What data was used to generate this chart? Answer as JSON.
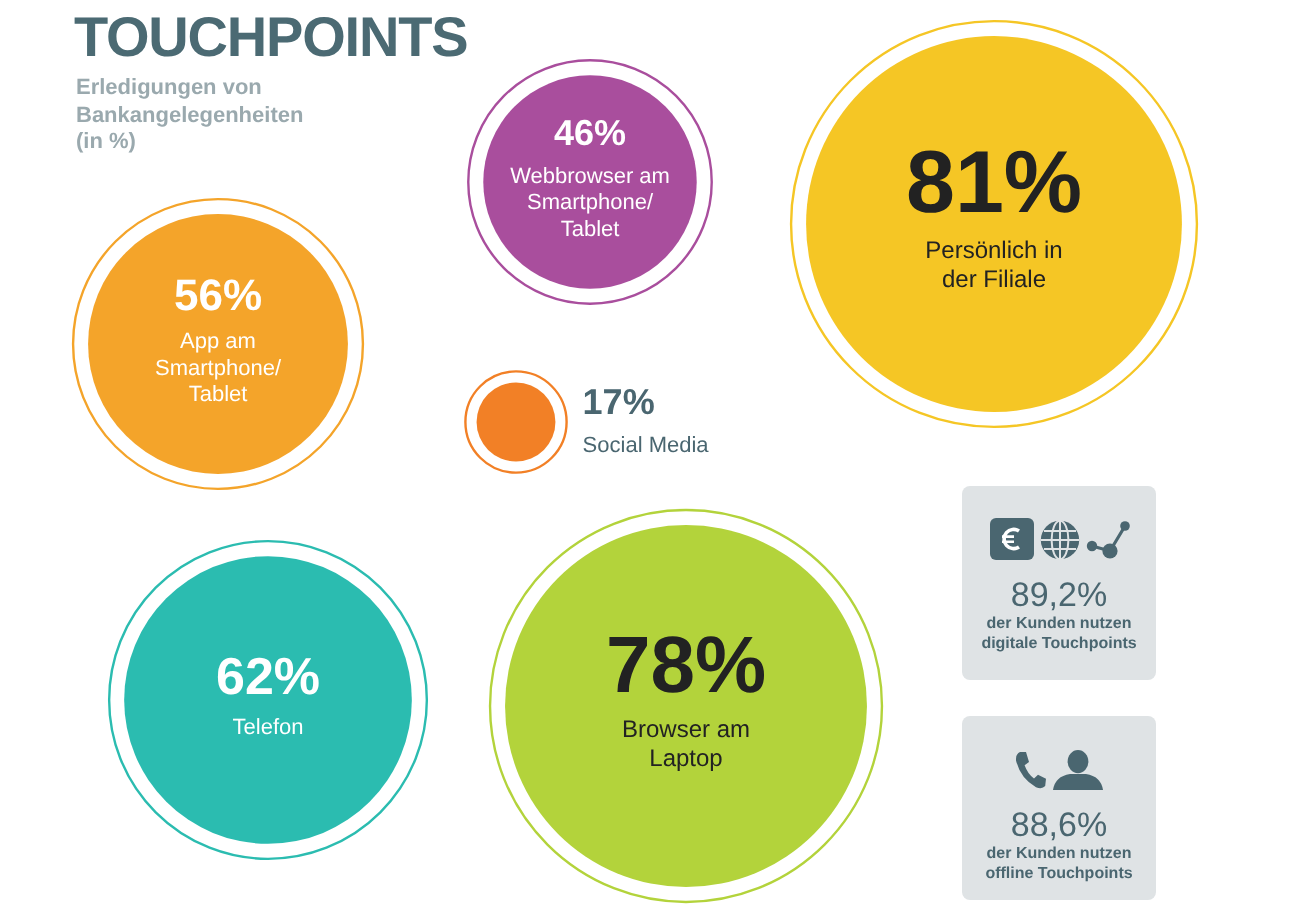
{
  "chart_data": [
    {
      "type": "other",
      "title": "TOUCHPOINTS",
      "subtitle": "Erledigungen von Bankangelegenheiten (in %)",
      "categories": [
        "App am Smartphone/Tablet",
        "Webbrowser am Smartphone/Tablet",
        "Persönlich in der Filiale",
        "Social Media",
        "Telefon",
        "Browser am Laptop"
      ],
      "values": [
        56,
        46,
        81,
        17,
        62,
        78
      ],
      "value_labels": [
        "56%",
        "46%",
        "81%",
        "17%",
        "62%",
        "78%"
      ],
      "colors": [
        "#f4a42a",
        "#a94e9d",
        "#f5c625",
        "#f28026",
        "#2bbcb0",
        "#b3d33b"
      ]
    },
    {
      "type": "other",
      "annotations": [
        "89,2%",
        "der Kunden nutzen digitale Touchpoints",
        "88,6%",
        "der Kunden nutzen offline Touchpoints"
      ]
    }
  ]
}
